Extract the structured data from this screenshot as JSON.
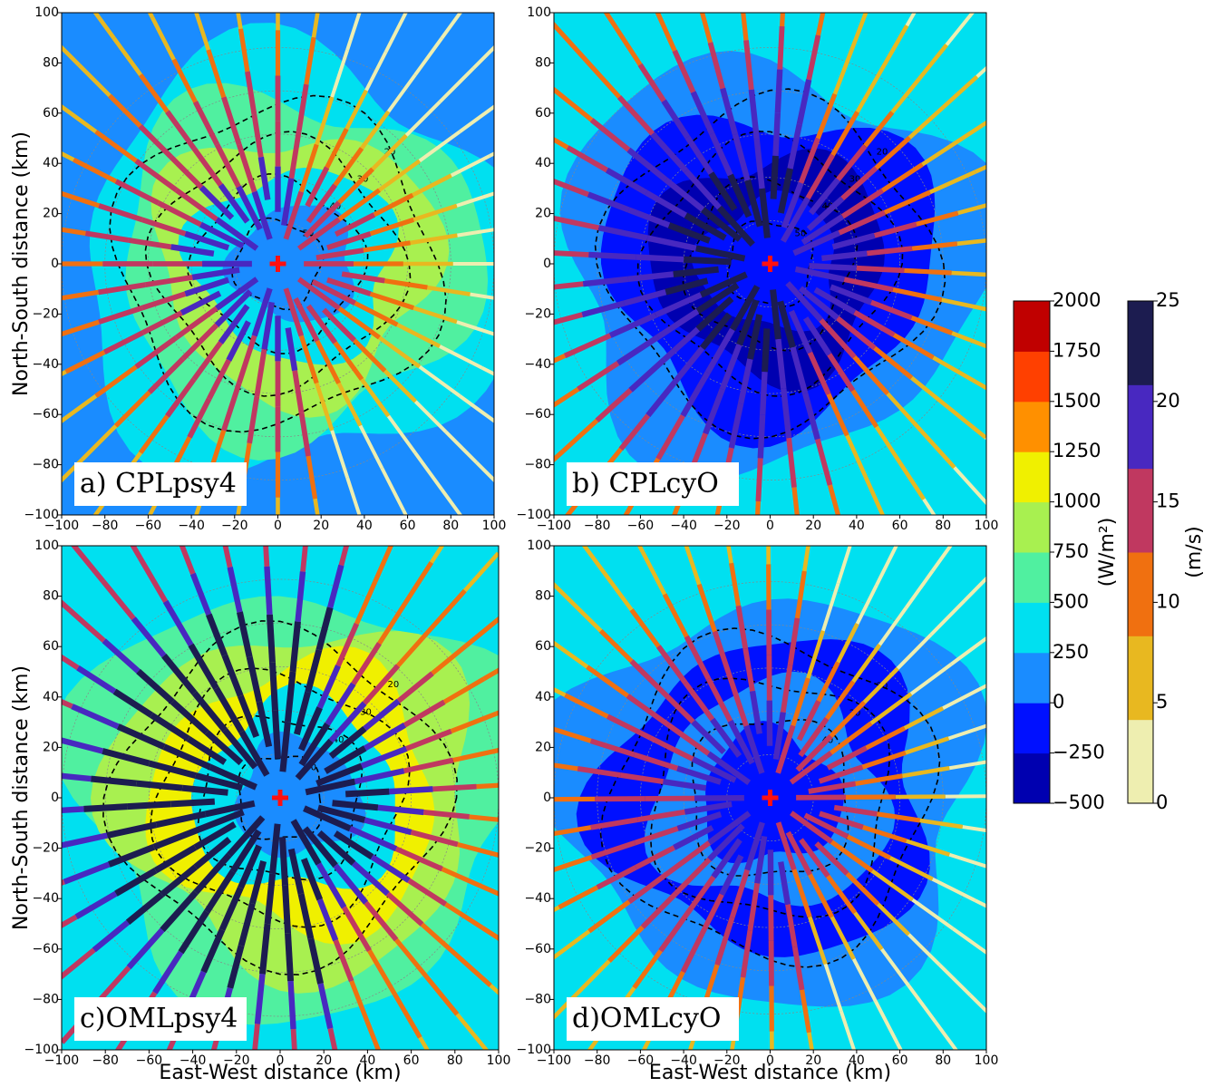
{
  "chart_data": [
    {
      "type": "contour",
      "title": "a) CPLpsy4",
      "ylabel": "North-South distance (km)",
      "xlim": [
        -100,
        100
      ],
      "ylim": [
        -100,
        100
      ],
      "xticks": [
        {
          "value": -100,
          "label": "−100"
        },
        {
          "value": -80,
          "label": "−80"
        },
        {
          "value": -60,
          "label": "−60"
        },
        {
          "value": -40,
          "label": "−40"
        },
        {
          "value": -20,
          "label": "−20"
        },
        0,
        20,
        40,
        60,
        80,
        100
      ],
      "yticks": [
        {
          "value": -100,
          "label": "−100"
        },
        {
          "value": -80,
          "label": "−80"
        },
        {
          "value": -60,
          "label": "−60"
        },
        {
          "value": -40,
          "label": "−40"
        },
        {
          "value": -20,
          "label": "−20"
        },
        0,
        20,
        40,
        60,
        80,
        100
      ],
      "contour_levels": [
        20,
        30,
        40,
        50
      ],
      "colors": [
        "#1a8cff",
        "#00e0f0",
        "#50f0a0",
        "#a8f050",
        "#00e0f0",
        "#1a8cff"
      ]
    },
    {
      "type": "contour",
      "title": "b) CPLcyO",
      "xlim": [
        -100,
        100
      ],
      "ylim": [
        -100,
        100
      ],
      "xticks": [
        {
          "value": -100,
          "label": "−100"
        },
        {
          "value": -80,
          "label": "−80"
        },
        {
          "value": -60,
          "label": "−60"
        },
        {
          "value": -40,
          "label": "−40"
        },
        {
          "value": -20,
          "label": "−20"
        },
        0,
        20,
        40,
        60,
        80,
        100
      ],
      "yticks": [
        {
          "value": -100,
          "label": "−100"
        },
        {
          "value": -80,
          "label": "−80"
        },
        {
          "value": -60,
          "label": "−60"
        },
        {
          "value": -40,
          "label": "−40"
        },
        {
          "value": -20,
          "label": "−20"
        },
        0,
        20,
        40,
        60,
        80,
        100
      ],
      "contour_levels": [
        20,
        30,
        40,
        50
      ],
      "colors": [
        "#00e0f0",
        "#1a8cff",
        "#0010ff",
        "#0000b0",
        "#0010ff"
      ]
    },
    {
      "type": "contour",
      "title": "c)OMLpsy4",
      "xlabel": "East-West distance (km)",
      "ylabel": "North-South distance (km)",
      "xlim": [
        -100,
        100
      ],
      "ylim": [
        -100,
        100
      ],
      "xticks": [
        {
          "value": -100,
          "label": "−100"
        },
        {
          "value": -80,
          "label": "−80"
        },
        {
          "value": -60,
          "label": "−60"
        },
        {
          "value": -40,
          "label": "−40"
        },
        {
          "value": -20,
          "label": "−20"
        },
        0,
        20,
        40,
        60,
        80,
        100
      ],
      "yticks": [
        {
          "value": -100,
          "label": "−100"
        },
        {
          "value": -80,
          "label": "−80"
        },
        {
          "value": -60,
          "label": "−60"
        },
        {
          "value": -40,
          "label": "−40"
        },
        {
          "value": -20,
          "label": "−20"
        },
        0,
        20,
        40,
        60,
        80,
        100
      ],
      "contour_levels": [
        20,
        30,
        40,
        50
      ],
      "colors": [
        "#00e0f0",
        "#50f0a0",
        "#a8f050",
        "#f0f000",
        "#00e0f0",
        "#1a8cff"
      ]
    },
    {
      "type": "contour",
      "title": "d)OMLcyO",
      "xlabel": "East-West distance (km)",
      "xlim": [
        -100,
        100
      ],
      "ylim": [
        -100,
        100
      ],
      "xticks": [
        {
          "value": -100,
          "label": "−100"
        },
        {
          "value": -80,
          "label": "−80"
        },
        {
          "value": -60,
          "label": "−60"
        },
        {
          "value": -40,
          "label": "−40"
        },
        {
          "value": -20,
          "label": "−20"
        },
        0,
        20,
        40,
        60,
        80,
        100
      ],
      "yticks": [
        {
          "value": -100,
          "label": "−100"
        },
        {
          "value": -80,
          "label": "−80"
        },
        {
          "value": -60,
          "label": "−60"
        },
        {
          "value": -40,
          "label": "−40"
        },
        {
          "value": -20,
          "label": "−20"
        },
        0,
        20,
        40,
        60,
        80,
        100
      ],
      "contour_levels": [
        20,
        30,
        40
      ],
      "colors": [
        "#00e0f0",
        "#1a8cff",
        "#0010ff",
        "#1a8cff",
        "#0010ff"
      ]
    }
  ],
  "colorbars": [
    {
      "label": "(W/m²)",
      "lim": [
        -500,
        2000
      ],
      "ticks": [
        {
          "value": -500,
          "label": "−500"
        },
        {
          "value": -250,
          "label": "−250"
        },
        0,
        250,
        500,
        750,
        1000,
        1250,
        1500,
        1750,
        2000
      ],
      "colors": [
        "#0000b0",
        "#0010ff",
        "#1a8cff",
        "#00e0f0",
        "#50f0a0",
        "#a8f050",
        "#f0f000",
        "#ff9000",
        "#ff4000",
        "#c00000"
      ]
    },
    {
      "label": "(m/s)",
      "lim": [
        0,
        25
      ],
      "ticks": [
        0,
        5,
        10,
        15,
        20,
        25
      ],
      "colors": [
        "#eeeeb0",
        "#e8b820",
        "#f07010",
        "#c03860",
        "#4828c0",
        "#1c1c50"
      ]
    }
  ]
}
